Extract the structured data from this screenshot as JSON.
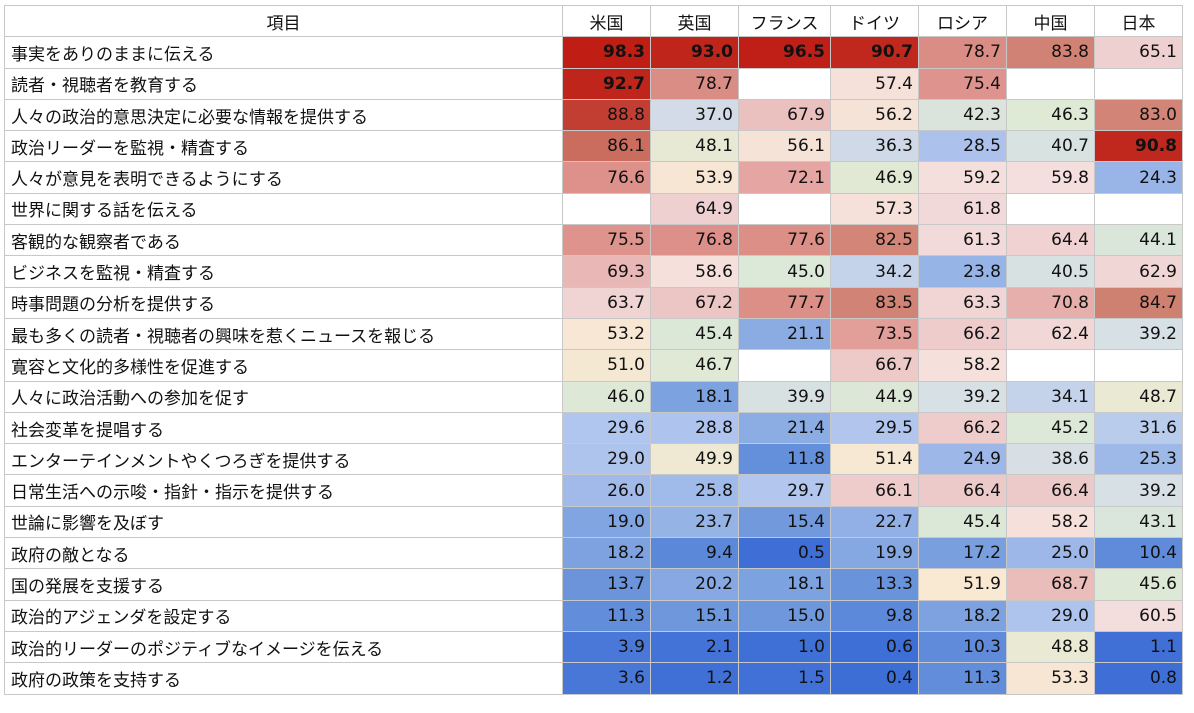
{
  "chart_data": {
    "type": "table",
    "header_label": "項目",
    "columns": [
      "米国",
      "英国",
      "フランス",
      "ドイツ",
      "ロシア",
      "中国",
      "日本"
    ],
    "rows": [
      {
        "label": "事実をありのままに伝える",
        "values": [
          98.3,
          93.0,
          96.5,
          90.7,
          78.7,
          83.8,
          65.1
        ]
      },
      {
        "label": "読者・視聴者を教育する",
        "values": [
          92.7,
          78.7,
          null,
          57.4,
          75.4,
          null,
          null
        ]
      },
      {
        "label": "人々の政治的意思決定に必要な情報を提供する",
        "values": [
          88.8,
          37.0,
          67.9,
          56.2,
          42.3,
          46.3,
          83.0
        ]
      },
      {
        "label": "政治リーダーを監視・精査する",
        "values": [
          86.1,
          48.1,
          56.1,
          36.3,
          28.5,
          40.7,
          90.8
        ]
      },
      {
        "label": "人々が意見を表明できるようにする",
        "values": [
          76.6,
          53.9,
          72.1,
          46.9,
          59.2,
          59.8,
          24.3
        ]
      },
      {
        "label": "世界に関する話を伝える",
        "values": [
          null,
          64.9,
          null,
          57.3,
          61.8,
          null,
          null
        ]
      },
      {
        "label": "客観的な観察者である",
        "values": [
          75.5,
          76.8,
          77.6,
          82.5,
          61.3,
          64.4,
          44.1
        ]
      },
      {
        "label": "ビジネスを監視・精査する",
        "values": [
          69.3,
          58.6,
          45.0,
          34.2,
          23.8,
          40.5,
          62.9
        ]
      },
      {
        "label": "時事問題の分析を提供する",
        "values": [
          63.7,
          67.2,
          77.7,
          83.5,
          63.3,
          70.8,
          84.7
        ]
      },
      {
        "label": "最も多くの読者・視聴者の興味を惹くニュースを報じる",
        "values": [
          53.2,
          45.4,
          21.1,
          73.5,
          66.2,
          62.4,
          39.2
        ]
      },
      {
        "label": "寛容と文化的多様性を促進する",
        "values": [
          51.0,
          46.7,
          null,
          66.7,
          58.2,
          null,
          null
        ]
      },
      {
        "label": "人々に政治活動への参加を促す",
        "values": [
          46.0,
          18.1,
          39.9,
          44.9,
          39.2,
          34.1,
          48.7
        ]
      },
      {
        "label": "社会変革を提唱する",
        "values": [
          29.6,
          28.8,
          21.4,
          29.5,
          66.2,
          45.2,
          31.6
        ]
      },
      {
        "label": "エンターテインメントやくつろぎを提供する",
        "values": [
          29.0,
          49.9,
          11.8,
          51.4,
          24.9,
          38.6,
          25.3
        ]
      },
      {
        "label": "日常生活への示唆・指針・指示を提供する",
        "values": [
          26.0,
          25.8,
          29.7,
          66.1,
          66.4,
          66.4,
          39.2
        ]
      },
      {
        "label": "世論に影響を及ぼす",
        "values": [
          19.0,
          23.7,
          15.4,
          22.7,
          45.4,
          58.2,
          43.1
        ]
      },
      {
        "label": "政府の敵となる",
        "values": [
          18.2,
          9.4,
          0.5,
          19.9,
          17.2,
          25.0,
          10.4
        ]
      },
      {
        "label": "国の発展を支援する",
        "values": [
          13.7,
          20.2,
          18.1,
          13.3,
          51.9,
          68.7,
          45.6
        ]
      },
      {
        "label": "政治的アジェンダを設定する",
        "values": [
          11.3,
          15.1,
          15.0,
          9.8,
          18.2,
          29.0,
          60.5
        ]
      },
      {
        "label": "政治的リーダーのポジティブなイメージを伝える",
        "values": [
          3.9,
          2.1,
          1.0,
          0.6,
          10.3,
          48.8,
          1.1
        ]
      },
      {
        "label": "政府の政策を支持する",
        "values": [
          3.6,
          1.2,
          1.5,
          0.4,
          11.3,
          53.3,
          0.8
        ]
      }
    ],
    "bold_threshold": 90,
    "color_scale": {
      "stops": [
        {
          "value": 0,
          "color": "#3c6dd6"
        },
        {
          "value": 15,
          "color": "#6f98dc"
        },
        {
          "value": 30,
          "color": "#b3c7ee"
        },
        {
          "value": 38,
          "color": "#d6dee6"
        },
        {
          "value": 46,
          "color": "#dde9d6"
        },
        {
          "value": 52,
          "color": "#f9e8d2"
        },
        {
          "value": 60,
          "color": "#f4dede"
        },
        {
          "value": 66,
          "color": "#eecdcd"
        },
        {
          "value": 75,
          "color": "#e0948f"
        },
        {
          "value": 85,
          "color": "#ce8070"
        },
        {
          "value": 90,
          "color": "#c0291f"
        },
        {
          "value": 100,
          "color": "#c01a12"
        }
      ]
    }
  }
}
